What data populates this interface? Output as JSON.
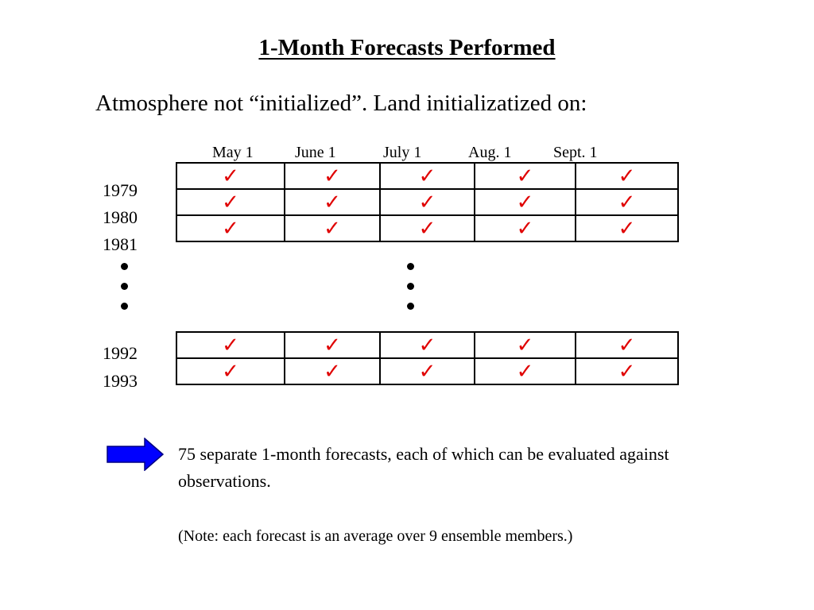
{
  "slide": {
    "title": "1-Month Forecasts Performed",
    "subtitle": "Atmosphere not “initialized”.  Land initializatized on:",
    "columns": [
      "May 1",
      "June 1",
      "July 1",
      "Aug. 1",
      "Sept. 1"
    ],
    "years_top": [
      "1979",
      "1980",
      "1981"
    ],
    "years_bottom": [
      "1992",
      "1993"
    ],
    "check_mark": "✓",
    "check_color": "#e00000",
    "arrow_color": "#0000ff",
    "summary": "75 separate 1-month forecasts, each of which can be evaluated against observations.",
    "note": "(Note: each forecast is an average over 9 ensemble members.)"
  }
}
